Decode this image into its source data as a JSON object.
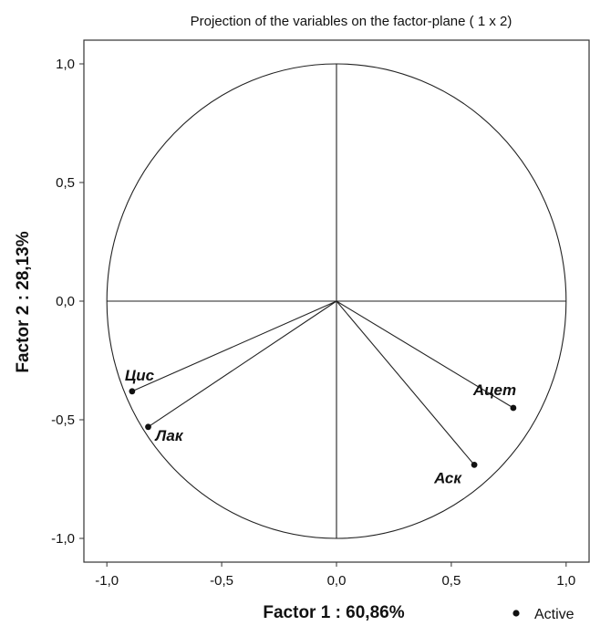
{
  "chart_data": {
    "type": "scatter",
    "title": "Projection of the variables on the factor-plane (  1 x    2)",
    "xlabel": "Factor 1 : 60,86%",
    "ylabel": "Factor 2 : 28,13%",
    "xlim": [
      -1.1,
      1.1
    ],
    "ylim": [
      -1.1,
      1.1
    ],
    "x_ticks": [
      {
        "value": -1.0,
        "label": "-1,0"
      },
      {
        "value": -0.5,
        "label": "-0,5"
      },
      {
        "value": 0.0,
        "label": "0,0"
      },
      {
        "value": 0.5,
        "label": "0,5"
      },
      {
        "value": 1.0,
        "label": "1,0"
      }
    ],
    "y_ticks": [
      {
        "value": 1.0,
        "label": "1,0"
      },
      {
        "value": 0.5,
        "label": "0,5"
      },
      {
        "value": 0.0,
        "label": "0,0"
      },
      {
        "value": -0.5,
        "label": "-0,5"
      },
      {
        "value": -1.0,
        "label": "-1,0"
      }
    ],
    "unit_circle": true,
    "grid": false,
    "legend_position": "bottom-right",
    "colors": {
      "line": "#222222",
      "frame": "#333333",
      "point": "#111111"
    },
    "series": [
      {
        "name": "Active",
        "points": [
          {
            "label": "Цис",
            "x": -0.89,
            "y": -0.38,
            "label_side": "top"
          },
          {
            "label": "Лак",
            "x": -0.82,
            "y": -0.53,
            "label_side": "bottom-right"
          },
          {
            "label": "Ацет",
            "x": 0.77,
            "y": -0.45,
            "label_side": "top-left"
          },
          {
            "label": "Аск",
            "x": 0.6,
            "y": -0.69,
            "label_side": "bottom-left"
          }
        ]
      }
    ]
  }
}
